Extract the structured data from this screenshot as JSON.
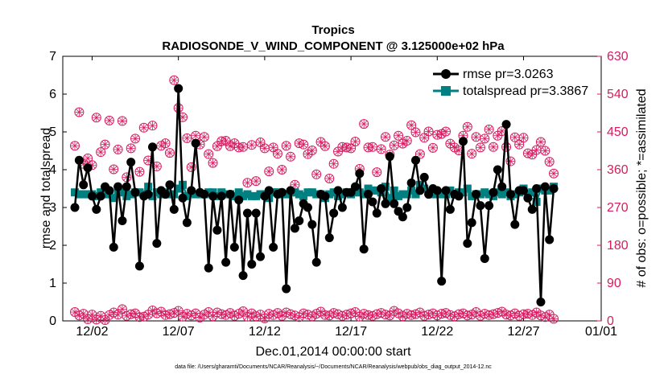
{
  "colors": {
    "rmse": "#000000",
    "spread": "#008080",
    "obs": "#d81b60",
    "axis": "#000000"
  },
  "chart_data": {
    "type": "line",
    "title": "Tropics",
    "subtitle": "RADIOSONDE_V_WIND_COMPONENT @ 3.125000e+02 hPa",
    "xlabel": "Dec.01,2014 00:00:00 start",
    "ylabel": "rmse and totalspread",
    "ylabel_right": "# of obs: o=possible; *=assimilated",
    "footnote": "data file: /Users/gharamti/Documents/NCAR/Reanalysis/~/Documents/NCAR/Reanalysis/webpub/obs_diag_output_2014-12.nc",
    "xlim": [
      0.3,
      31.5
    ],
    "ylim": [
      0,
      7
    ],
    "ylim_right": [
      0,
      630
    ],
    "xticks": [
      {
        "x": 2,
        "label": "12/02"
      },
      {
        "x": 7,
        "label": "12/07"
      },
      {
        "x": 12,
        "label": "12/12"
      },
      {
        "x": 17,
        "label": "12/17"
      },
      {
        "x": 22,
        "label": "12/22"
      },
      {
        "x": 27,
        "label": "12/27"
      },
      {
        "x": 32,
        "label": "01/01"
      }
    ],
    "yticks": [
      "0",
      "1",
      "2",
      "3",
      "4",
      "5",
      "6",
      "7"
    ],
    "yticks_right": [
      "0",
      "90",
      "180",
      "270",
      "360",
      "450",
      "540",
      "630"
    ],
    "x_start": 1,
    "x_step": 0.25,
    "series": [
      {
        "name": "rmse pr=3.0263",
        "values": [
          3.0,
          4.25,
          3.6,
          4.05,
          3.3,
          2.95,
          3.3,
          3.55,
          3.45,
          1.95,
          3.55,
          2.65,
          3.55,
          4.2,
          3.4,
          1.45,
          3.3,
          3.35,
          4.6,
          2.05,
          3.45,
          3.35,
          3.6,
          2.95,
          6.15,
          3.25,
          2.6,
          3.45,
          4.7,
          3.4,
          3.35,
          1.4,
          3.3,
          2.4,
          3.3,
          1.55,
          3.35,
          1.95,
          3.2,
          1.2,
          2.85,
          1.5,
          2.85,
          1.7,
          3.3,
          3.45,
          1.95,
          3.35,
          3.4,
          0.85,
          3.45,
          2.45,
          2.65,
          3.1,
          3.0,
          2.55,
          1.55,
          3.35,
          3.3,
          2.2,
          2.85,
          3.45,
          3.0,
          3.4,
          3.4,
          3.55,
          3.9,
          1.9,
          3.35,
          3.15,
          2.85,
          3.5,
          3.1,
          4.35,
          3.1,
          2.9,
          2.75,
          3.0,
          3.65,
          4.25,
          3.45,
          3.8,
          3.35,
          3.5,
          3.45,
          1.05,
          3.45,
          2.95,
          3.35,
          3.3,
          4.75,
          2.05,
          2.6,
          3.35,
          3.05,
          1.65,
          3.05,
          3.4,
          4.0,
          3.55,
          5.2,
          3.35,
          2.55,
          3.45,
          3.45,
          3.25,
          2.95,
          3.5,
          0.5,
          3.55,
          2.15,
          3.5
        ]
      },
      {
        "name": "totalspread pr=3.3867",
        "values": [
          3.4,
          3.35,
          3.35,
          3.35,
          3.35,
          3.3,
          3.4,
          3.35,
          3.4,
          3.25,
          3.4,
          3.4,
          3.3,
          3.35,
          3.4,
          3.4,
          3.35,
          3.55,
          3.3,
          3.4,
          3.35,
          3.4,
          3.35,
          3.35,
          3.5,
          3.6,
          3.3,
          3.4,
          3.35,
          3.35,
          3.35,
          3.4,
          3.4,
          3.3,
          3.4,
          3.35,
          3.35,
          3.3,
          3.4,
          3.3,
          3.35,
          3.3,
          3.3,
          3.35,
          3.35,
          3.25,
          3.4,
          3.4,
          3.35,
          3.35,
          3.4,
          3.4,
          3.35,
          3.3,
          3.4,
          3.4,
          3.35,
          3.35,
          3.25,
          3.35,
          3.4,
          3.3,
          3.35,
          3.4,
          3.35,
          3.4,
          3.4,
          3.35,
          3.5,
          3.45,
          3.45,
          3.4,
          3.55,
          3.25,
          3.45,
          3.3,
          3.35,
          3.35,
          3.45,
          3.35,
          3.6,
          3.5,
          3.4,
          3.35,
          3.4,
          3.35,
          3.35,
          3.45,
          3.35,
          3.4,
          3.4,
          3.5,
          3.3,
          3.35,
          3.35,
          3.4,
          3.35,
          3.3,
          3.4,
          3.35,
          3.4,
          3.3,
          3.35,
          3.4,
          3.5,
          3.35,
          3.4,
          3.15,
          3.5,
          3.45,
          3.45,
          3.55
        ]
      },
      {
        "name": "# of obs possible",
        "axis": "right",
        "values": [
          417,
          497,
          374,
          387,
          371,
          484,
          402,
          420,
          477,
          361,
          408,
          476,
          342,
          411,
          434,
          355,
          460,
          382,
          465,
          368,
          417,
          423,
          400,
          573,
          507,
          485,
          435,
          366,
          441,
          420,
          438,
          397,
          376,
          416,
          428,
          429,
          416,
          423,
          413,
          414,
          329,
          419,
          333,
          425,
          411,
          356,
          413,
          398,
          360,
          417,
          391,
          324,
          423,
          420,
          397,
          406,
          349,
          426,
          416,
          339,
          374,
          403,
          414,
          413,
          411,
          427,
          362,
          469,
          413,
          414,
          354,
          409,
          438,
          396,
          418,
          441,
          422,
          429,
          466,
          449,
          397,
          436,
          451,
          412,
          443,
          445,
          451,
          422,
          413,
          406,
          441,
          462,
          398,
          438,
          413,
          434,
          456,
          414,
          441,
          452,
          414,
          380,
          437,
          420,
          436,
          399,
          396,
          407,
          426,
          405,
          379,
          351
        ]
      },
      {
        "name": "# of obs assimilated",
        "axis": "right",
        "values": [
          21,
          13,
          17,
          4,
          15,
          3,
          12,
          2,
          14,
          20,
          15,
          28,
          12,
          16,
          18,
          9,
          10,
          15,
          25,
          18,
          22,
          14,
          16,
          19,
          24,
          10,
          17,
          13,
          18,
          8,
          15,
          21,
          11,
          20,
          16,
          14,
          19,
          12,
          17,
          23,
          10,
          18,
          11,
          15,
          6,
          17,
          14,
          19,
          12,
          20,
          16,
          13,
          9,
          18,
          15,
          11,
          17,
          22,
          14,
          13,
          19,
          16,
          12,
          15,
          18,
          21,
          10,
          17,
          14,
          12,
          16,
          19,
          15,
          13,
          24,
          18,
          11,
          17,
          14,
          16,
          20,
          12,
          15,
          18,
          13,
          17,
          19,
          14,
          11,
          16,
          18,
          13,
          15,
          21,
          12,
          17,
          14,
          16,
          19,
          22,
          15,
          13,
          18,
          12,
          16,
          17,
          14,
          20,
          13,
          9,
          15,
          5
        ]
      }
    ]
  }
}
